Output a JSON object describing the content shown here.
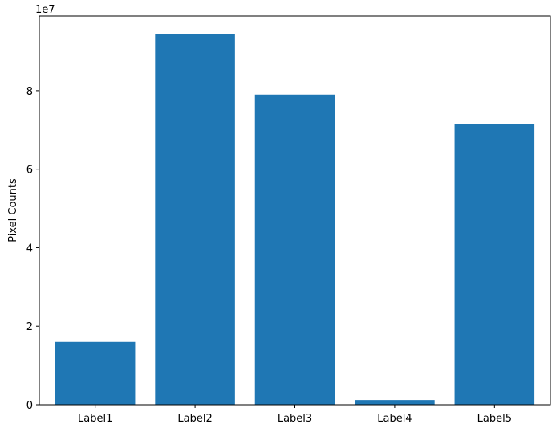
{
  "chart_data": {
    "type": "bar",
    "title": "",
    "xlabel": "",
    "ylabel": "Pixel Counts",
    "offset_label": "1e7",
    "categories": [
      "Label1",
      "Label2",
      "Label3",
      "Label4",
      "Label5"
    ],
    "values": [
      16000000,
      94500000,
      79000000,
      1200000,
      71500000
    ],
    "ylim": [
      0,
      99000000
    ],
    "yticks": [
      0,
      20000000,
      40000000,
      60000000,
      80000000
    ],
    "ytick_labels": [
      "0",
      "2",
      "4",
      "6",
      "8"
    ],
    "grid": false,
    "bar_color": "#1f77b4"
  }
}
